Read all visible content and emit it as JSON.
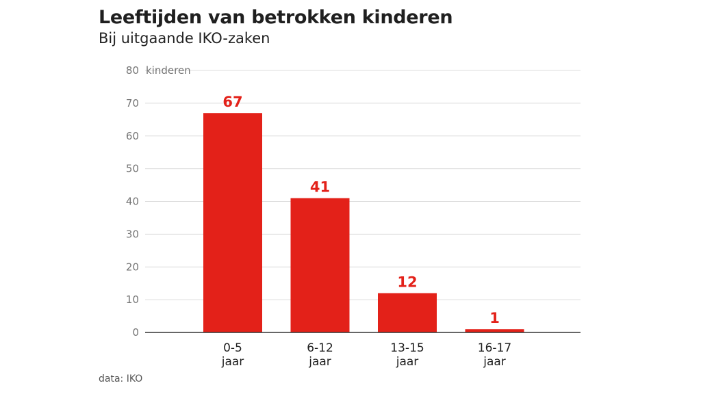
{
  "header": {
    "title": "Leeftijden van betrokken kinderen",
    "subtitle": "Bij uitgaande IKO-zaken"
  },
  "footer": {
    "source": "data: IKO"
  },
  "colors": {
    "bar": "#e32119",
    "grid": "#dcdcdc",
    "axis": "#333333"
  },
  "chart_data": {
    "type": "bar",
    "title": "Leeftijden van betrokken kinderen",
    "subtitle": "Bij uitgaande IKO-zaken",
    "categories": [
      [
        "0-5",
        "jaar"
      ],
      [
        "6-12",
        "jaar"
      ],
      [
        "13-15",
        "jaar"
      ],
      [
        "16-17",
        "jaar"
      ]
    ],
    "values": [
      67,
      41,
      12,
      1
    ],
    "value_labels": [
      "67",
      "41",
      "12",
      "1"
    ],
    "ylabel": "kinderen",
    "xlabel": "",
    "ylim": [
      0,
      80
    ],
    "yticks": [
      0,
      10,
      20,
      30,
      40,
      50,
      60,
      70,
      80
    ],
    "grid": true,
    "source": "data: IKO"
  }
}
